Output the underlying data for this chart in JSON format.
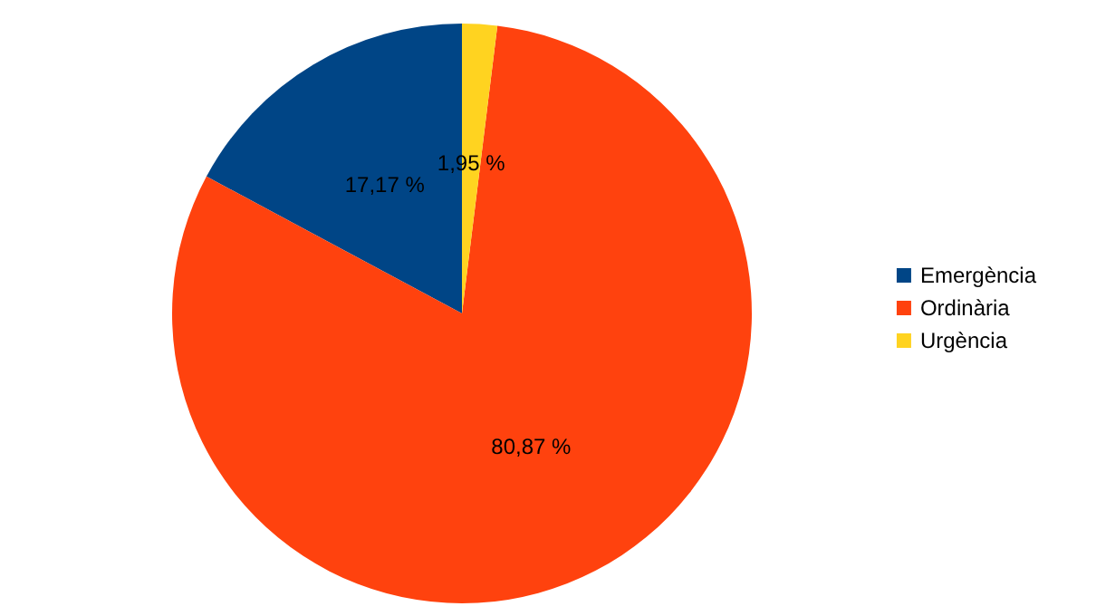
{
  "chart_data": {
    "type": "pie",
    "categories": [
      "Emergència",
      "Ordinària",
      "Urgència"
    ],
    "values": [
      17.17,
      80.87,
      1.95
    ],
    "colors": [
      "#004586",
      "#ff420e",
      "#ffd320"
    ],
    "value_labels": [
      "17,17 %",
      "80,87 %",
      "1,95 %"
    ],
    "legend": "right"
  }
}
